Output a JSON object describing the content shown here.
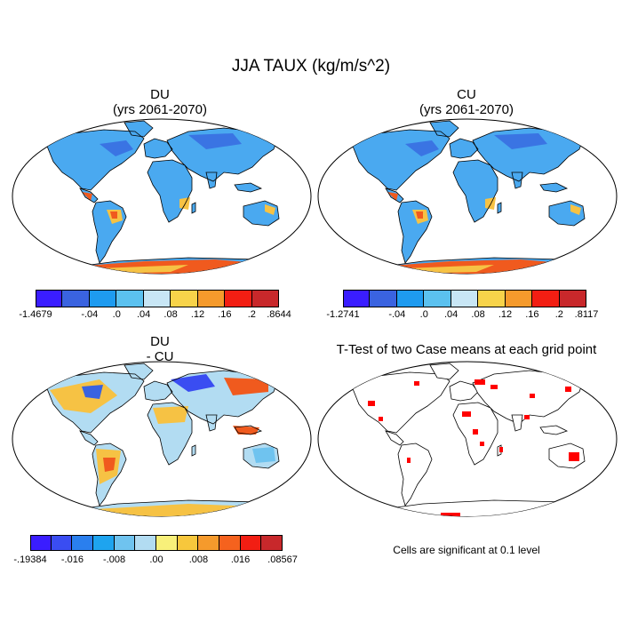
{
  "title": "JJA TAUX (kg/m/s^2)",
  "panels": [
    {
      "id": "du",
      "title_line1": "DU",
      "title_line2": "(yrs 2061-2070)"
    },
    {
      "id": "cu",
      "title_line1": "CU",
      "title_line2": "(yrs 2061-2070)"
    },
    {
      "id": "diff",
      "title_line1": "DU",
      "title_line2": "- CU"
    },
    {
      "id": "ttest",
      "title_line1": "T-Test of two Case means at each grid point",
      "title_line2": ""
    }
  ],
  "colorbars": {
    "du": {
      "colors": [
        "#3a1dff",
        "#3a63e0",
        "#1e9bf0",
        "#5bc1ef",
        "#c8e6f5",
        "#f7d34a",
        "#f59a2c",
        "#f21e13",
        "#c8282b"
      ],
      "labels": [
        "-1.4679",
        "-.04",
        ".0",
        ".04",
        ".08",
        ".12",
        ".16",
        ".2",
        ".8644"
      ]
    },
    "cu": {
      "colors": [
        "#3a1dff",
        "#3a63e0",
        "#1e9bf0",
        "#5bc1ef",
        "#c8e6f5",
        "#f7d34a",
        "#f59a2c",
        "#f21e13",
        "#c8282b"
      ],
      "labels": [
        "-1.2741",
        "-.04",
        ".0",
        ".04",
        ".08",
        ".12",
        ".16",
        ".2",
        ".8117"
      ]
    },
    "diff": {
      "colors": [
        "#3a1dff",
        "#3a4df2",
        "#2a7fee",
        "#1ea4ef",
        "#6fc3ef",
        "#b2dcf2",
        "#f8f07a",
        "#f7c73c",
        "#f59a2c",
        "#f5621e",
        "#f21e13",
        "#c8282b"
      ],
      "labels": [
        "-.19384",
        "-.016",
        "-.008",
        ".00",
        ".008",
        ".016",
        ".08567"
      ]
    }
  },
  "footnote": "Cells are significant at 0.1 level",
  "colors": {
    "land_base": "#4aa9f0",
    "land_dark": "#3a74e3",
    "warm": "#f6c244",
    "hot": "#f05a1e",
    "sig": "#ff0000"
  }
}
